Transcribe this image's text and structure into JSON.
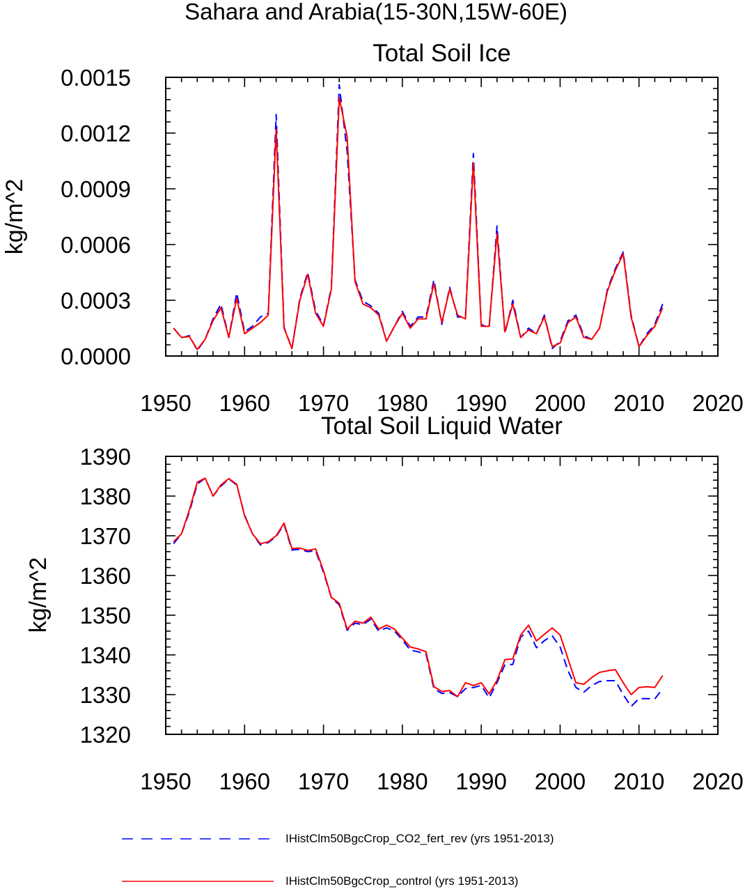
{
  "page_title": "Sahara and Arabia(15-30N,15W-60E)",
  "colors": {
    "series_dashed": "#0000ff",
    "series_solid": "#ff0000"
  },
  "legend": {
    "items": [
      {
        "label": "IHistClm50BgcCrop_CO2_fert_rev (yrs 1951-2013)",
        "style": "dashed",
        "color": "#0000ff"
      },
      {
        "label": "IHistClm50BgcCrop_control (yrs 1951-2013)",
        "style": "solid",
        "color": "#ff0000"
      }
    ]
  },
  "chart_data": [
    {
      "type": "line",
      "title": "Total Soil Ice",
      "ylabel": "kg/m^2",
      "xlabel": "",
      "xlim": [
        1950,
        2020
      ],
      "ylim": [
        0.0,
        0.0015
      ],
      "xticks": [
        1950,
        1960,
        1970,
        1980,
        1990,
        2000,
        2010,
        2020
      ],
      "yticks": [
        0.0,
        0.0003,
        0.0006,
        0.0009,
        0.0012,
        0.0015
      ],
      "ytick_labels": [
        "0.0000",
        "0.0003",
        "0.0006",
        "0.0009",
        "0.0012",
        "0.0015"
      ],
      "x": [
        1951,
        1952,
        1953,
        1954,
        1955,
        1956,
        1957,
        1958,
        1959,
        1960,
        1961,
        1962,
        1963,
        1964,
        1965,
        1966,
        1967,
        1968,
        1969,
        1970,
        1971,
        1972,
        1973,
        1974,
        1975,
        1976,
        1977,
        1978,
        1979,
        1980,
        1981,
        1982,
        1983,
        1984,
        1985,
        1986,
        1987,
        1988,
        1989,
        1990,
        1991,
        1992,
        1993,
        1994,
        1995,
        1996,
        1997,
        1998,
        1999,
        2000,
        2001,
        2002,
        2003,
        2004,
        2005,
        2006,
        2007,
        2008,
        2009,
        2010,
        2011,
        2012,
        2013
      ],
      "series": [
        {
          "name": "IHistClm50BgcCrop_CO2_fert_rev (yrs 1951-2013)",
          "color": "#0000ff",
          "style": "dashed",
          "values": [
            0.00015,
            9.8e-05,
            0.00011,
            3e-05,
            9e-05,
            0.0002,
            0.00028,
            0.0001,
            0.00034,
            0.00013,
            0.00016,
            0.00021,
            0.00023,
            0.0013,
            0.000155,
            4e-05,
            0.00031,
            0.00045,
            0.000245,
            0.000165,
            0.00037,
            0.00146,
            0.0011,
            0.00041,
            0.000295,
            0.00027,
            0.00023,
            8e-05,
            0.00016,
            0.00024,
            0.00016,
            0.00021,
            0.00021,
            0.00041,
            0.00017,
            0.00037,
            0.00021,
            0.00021,
            0.00109,
            0.00017,
            0.00015,
            0.0007,
            0.00012,
            0.0003,
            0.0001,
            0.00015,
            0.00012,
            0.00022,
            4e-05,
            8e-05,
            0.00019,
            0.00022,
            0.00011,
            9e-05,
            0.00015,
            0.00036,
            0.00047,
            0.00056,
            0.00022,
            5e-05,
            0.00012,
            0.00017,
            0.00028
          ]
        },
        {
          "name": "IHistClm50BgcCrop_control (yrs 1951-2013)",
          "color": "#ff0000",
          "style": "solid",
          "values": [
            0.00015,
            0.0001,
            0.000105,
            3.5e-05,
            9e-05,
            0.00019,
            0.00026,
            0.0001,
            0.00031,
            0.00012,
            0.00015,
            0.00018,
            0.00022,
            0.00122,
            0.00015,
            4e-05,
            0.0003,
            0.00044,
            0.00023,
            0.00016,
            0.00036,
            0.00139,
            0.00118,
            0.0004,
            0.00028,
            0.00026,
            0.00022,
            8e-05,
            0.00016,
            0.00023,
            0.00015,
            0.0002,
            0.0002,
            0.00039,
            0.00018,
            0.00036,
            0.00022,
            0.0002,
            0.00104,
            0.00016,
            0.00016,
            0.00066,
            0.00013,
            0.00028,
            0.0001,
            0.00014,
            0.00012,
            0.00021,
            5e-05,
            7e-05,
            0.00018,
            0.00021,
            0.0001,
            9e-05,
            0.00015,
            0.00035,
            0.00046,
            0.00055,
            0.00021,
            5e-05,
            0.00011,
            0.00016,
            0.00026
          ]
        }
      ]
    },
    {
      "type": "line",
      "title": "Total Soil Liquid Water",
      "ylabel": "kg/m^2",
      "xlabel": "",
      "xlim": [
        1950,
        2020
      ],
      "ylim": [
        1320,
        1390
      ],
      "xticks": [
        1950,
        1960,
        1970,
        1980,
        1990,
        2000,
        2010,
        2020
      ],
      "yticks": [
        1320,
        1330,
        1340,
        1350,
        1360,
        1370,
        1380,
        1390
      ],
      "ytick_labels": [
        "1320",
        "1330",
        "1340",
        "1350",
        "1360",
        "1370",
        "1380",
        "1390"
      ],
      "x": [
        1951,
        1952,
        1953,
        1954,
        1955,
        1956,
        1957,
        1958,
        1959,
        1960,
        1961,
        1962,
        1963,
        1964,
        1965,
        1966,
        1967,
        1968,
        1969,
        1970,
        1971,
        1972,
        1973,
        1974,
        1975,
        1976,
        1977,
        1978,
        1979,
        1980,
        1981,
        1982,
        1983,
        1984,
        1985,
        1986,
        1987,
        1988,
        1989,
        1990,
        1991,
        1992,
        1993,
        1994,
        1995,
        1996,
        1997,
        1998,
        1999,
        2000,
        2001,
        2002,
        2003,
        2004,
        2005,
        2006,
        2007,
        2008,
        2009,
        2010,
        2011,
        2012,
        2013
      ],
      "series": [
        {
          "name": "IHistClm50BgcCrop_CO2_fert_rev (yrs 1951-2013)",
          "color": "#0000ff",
          "style": "dashed",
          "values": [
            1368.0,
            1370.5,
            1376.0,
            1383.0,
            1384.5,
            1380.0,
            1382.5,
            1384.3,
            1382.8,
            1375.2,
            1370.5,
            1367.7,
            1368.3,
            1369.8,
            1372.9,
            1366.4,
            1366.6,
            1366.0,
            1366.2,
            1360.8,
            1354.4,
            1352.6,
            1346.2,
            1348.0,
            1347.6,
            1349.0,
            1346.0,
            1346.8,
            1346.0,
            1343.8,
            1341.2,
            1340.8,
            1340.2,
            1331.5,
            1330.3,
            1330.5,
            1329.5,
            1331.5,
            1331.8,
            1332.3,
            1329.2,
            1333.0,
            1337.5,
            1337.6,
            1344.5,
            1346.0,
            1341.8,
            1343.6,
            1344.8,
            1342.0,
            1336.0,
            1331.8,
            1330.6,
            1332.3,
            1333.3,
            1333.5,
            1333.5,
            1330.0,
            1327.0,
            1329.0,
            1329.0,
            1328.9,
            1331.5
          ]
        },
        {
          "name": "IHistClm50BgcCrop_control (yrs 1951-2013)",
          "color": "#ff0000",
          "style": "solid",
          "values": [
            1368.5,
            1370.5,
            1376.5,
            1383.5,
            1384.5,
            1380.0,
            1382.8,
            1384.4,
            1383.0,
            1375.0,
            1370.5,
            1368.0,
            1368.5,
            1370.0,
            1373.2,
            1366.8,
            1366.9,
            1366.3,
            1366.7,
            1361.2,
            1354.5,
            1353.0,
            1346.5,
            1348.5,
            1348.0,
            1349.5,
            1346.5,
            1347.5,
            1346.5,
            1344.2,
            1342.0,
            1341.5,
            1340.8,
            1332.0,
            1330.8,
            1331.0,
            1329.5,
            1333.0,
            1332.3,
            1333.0,
            1330.2,
            1333.6,
            1338.8,
            1339.0,
            1345.0,
            1347.5,
            1343.5,
            1345.2,
            1346.8,
            1345.0,
            1339.0,
            1333.0,
            1332.6,
            1334.3,
            1335.6,
            1336.0,
            1336.3,
            1333.0,
            1330.0,
            1331.8,
            1332.0,
            1331.8,
            1334.8
          ]
        }
      ]
    }
  ]
}
